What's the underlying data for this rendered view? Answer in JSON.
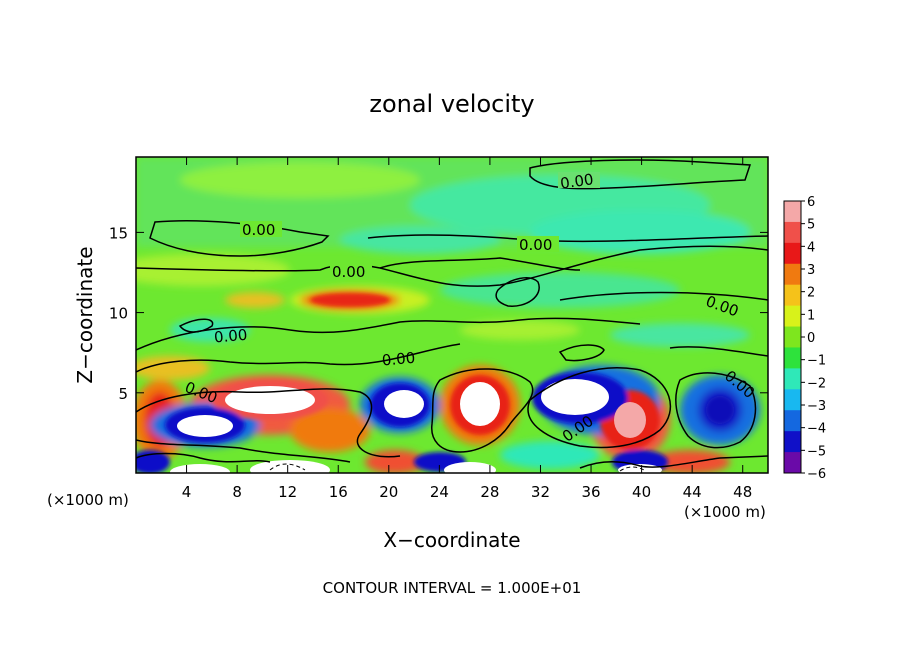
{
  "chart_data": {
    "type": "heatmap",
    "title": "zonal velocity",
    "xlabel": "X−coordinate",
    "ylabel": "Z−coordinate",
    "x_unit_left": "(×1000 m)",
    "x_unit_right": "(×1000 m)",
    "x_ticks": [
      "4",
      "8",
      "12",
      "16",
      "20",
      "24",
      "28",
      "32",
      "36",
      "40",
      "44",
      "48"
    ],
    "x_tick_values": [
      4,
      8,
      12,
      16,
      20,
      24,
      28,
      32,
      36,
      40,
      44,
      48
    ],
    "y_ticks": [
      "5",
      "10",
      "15"
    ],
    "y_tick_values": [
      5,
      10,
      15
    ],
    "xlim": [
      0,
      50
    ],
    "ylim": [
      0,
      19.7
    ],
    "contour_label": "0.00",
    "contour_level": 0.0,
    "colorbar": {
      "labels": [
        "6",
        "5",
        "4",
        "3",
        "2",
        "1",
        "0",
        "−1",
        "−2",
        "−3",
        "−4",
        "−5",
        "−6"
      ],
      "values": [
        6,
        5,
        4,
        3,
        2,
        1,
        0,
        -1,
        -2,
        -3,
        -4,
        -5,
        -6
      ],
      "colors": [
        "#f4a8a8",
        "#f0504a",
        "#e81818",
        "#f07a10",
        "#f5c21a",
        "#d8f21a",
        "#7ee61e",
        "#2ee23c",
        "#2fe8b8",
        "#18b8f0",
        "#1468e0",
        "#1010c8",
        "#6a0aa8"
      ]
    },
    "footer": "CONTOUR INTERVAL = 1.000E+01"
  }
}
